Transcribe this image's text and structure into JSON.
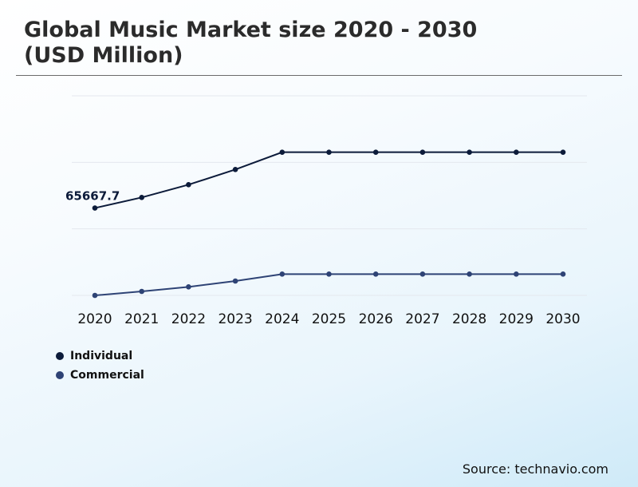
{
  "page": {
    "title_line1": "Global Music Market size 2020 - 2030",
    "title_line2": "(USD Million)",
    "source": "Source: technavio.com"
  },
  "colors": {
    "individual": "#0c1b3a",
    "commercial": "#2e4375",
    "grid": "#e4e8ee"
  },
  "chart_data": {
    "type": "line",
    "title": "Global Music Market size 2020 - 2030 (USD Million)",
    "xlabel": "",
    "ylabel": "",
    "grid": true,
    "legend_position": "bottom-left",
    "categories": [
      "2020",
      "2021",
      "2022",
      "2023",
      "2024",
      "2025",
      "2026",
      "2027",
      "2028",
      "2029",
      "2030"
    ],
    "ylim": [
      0,
      150000
    ],
    "series": [
      {
        "name": "Individual",
        "values": [
          65667.7,
          73600,
          83200,
          94600,
          107600,
          107600,
          107600,
          107600,
          107600,
          107600,
          107600
        ]
      },
      {
        "name": "Commercial",
        "values": [
          0,
          3000,
          6400,
          10800,
          16000,
          16000,
          16000,
          16000,
          16000,
          16000,
          16000
        ]
      }
    ],
    "annotations": [
      {
        "series": "Individual",
        "category": "2020",
        "text": "65667.7"
      }
    ]
  }
}
